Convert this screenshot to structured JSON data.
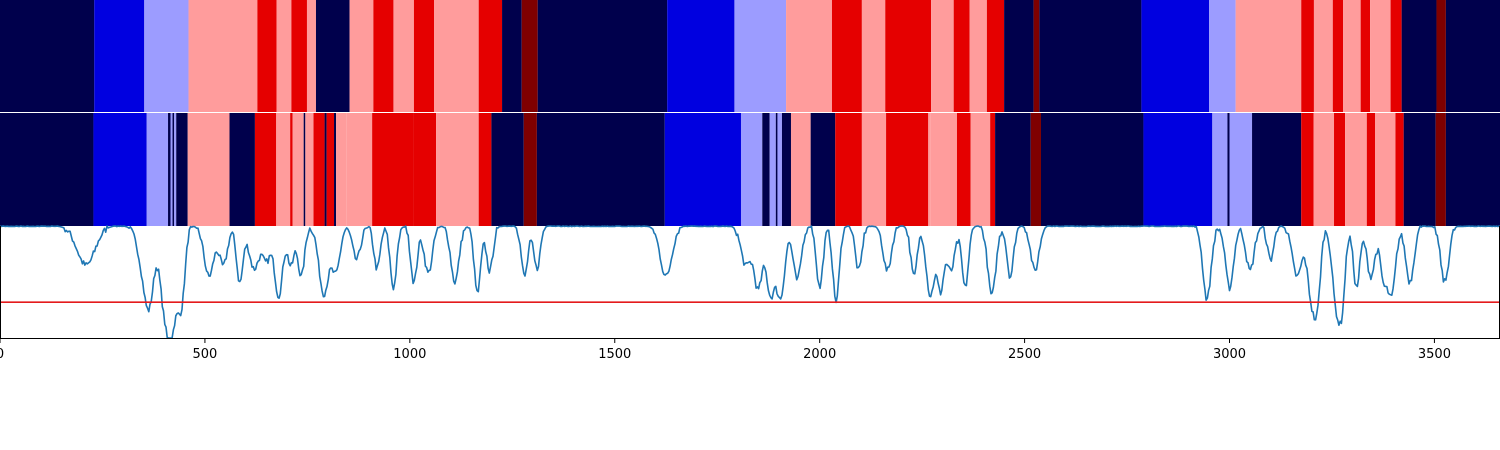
{
  "chart_data": {
    "type": "heatmap",
    "description_of_panels": [
      "segmentation strip 1",
      "segmentation strip 2",
      "line signal with threshold"
    ],
    "x_range": [
      0,
      3660
    ],
    "x_ticks": [
      0,
      500,
      1000,
      1500,
      2000,
      2500,
      3000,
      3500
    ],
    "palette": {
      "navy": "#00004c",
      "blue": "#0000e0",
      "lavender": "#9c9cff",
      "pink": "#ff9c9c",
      "red": "#e50000",
      "dark_red": "#7f0000"
    },
    "strip_top": [
      [
        0,
        230,
        "navy"
      ],
      [
        230,
        352,
        "blue"
      ],
      [
        352,
        460,
        "lavender"
      ],
      [
        460,
        628,
        "pink"
      ],
      [
        628,
        675,
        "red"
      ],
      [
        675,
        711,
        "pink"
      ],
      [
        711,
        749,
        "red"
      ],
      [
        749,
        771,
        "pink"
      ],
      [
        771,
        853,
        "navy"
      ],
      [
        853,
        911,
        "pink"
      ],
      [
        911,
        960,
        "red"
      ],
      [
        960,
        1010,
        "pink"
      ],
      [
        1010,
        1059,
        "red"
      ],
      [
        1059,
        1168,
        "pink"
      ],
      [
        1168,
        1225,
        "red"
      ],
      [
        1225,
        1273,
        "navy"
      ],
      [
        1273,
        1312,
        "dark_red"
      ],
      [
        1312,
        1628,
        "navy"
      ],
      [
        1628,
        1792,
        "blue"
      ],
      [
        1792,
        1918,
        "lavender"
      ],
      [
        1918,
        2030,
        "pink"
      ],
      [
        2030,
        2103,
        "red"
      ],
      [
        2103,
        2160,
        "pink"
      ],
      [
        2160,
        2272,
        "red"
      ],
      [
        2272,
        2327,
        "pink"
      ],
      [
        2327,
        2366,
        "red"
      ],
      [
        2366,
        2408,
        "pink"
      ],
      [
        2408,
        2450,
        "red"
      ],
      [
        2450,
        2522,
        "navy"
      ],
      [
        2522,
        2536,
        "dark_red"
      ],
      [
        2536,
        2785,
        "navy"
      ],
      [
        2785,
        2950,
        "blue"
      ],
      [
        2950,
        3015,
        "lavender"
      ],
      [
        3015,
        3175,
        "pink"
      ],
      [
        3175,
        3206,
        "red"
      ],
      [
        3206,
        3252,
        "pink"
      ],
      [
        3252,
        3277,
        "red"
      ],
      [
        3277,
        3320,
        "pink"
      ],
      [
        3320,
        3343,
        "red"
      ],
      [
        3343,
        3393,
        "pink"
      ],
      [
        3393,
        3420,
        "red"
      ],
      [
        3420,
        3505,
        "navy"
      ],
      [
        3505,
        3528,
        "dark_red"
      ],
      [
        3528,
        3660,
        "navy"
      ]
    ],
    "strip_bottom": [
      [
        0,
        228,
        "navy"
      ],
      [
        228,
        358,
        "blue"
      ],
      [
        358,
        410,
        "lavender"
      ],
      [
        410,
        416,
        "navy"
      ],
      [
        416,
        421,
        "lavender"
      ],
      [
        421,
        425,
        "navy"
      ],
      [
        425,
        430,
        "lavender"
      ],
      [
        430,
        458,
        "navy"
      ],
      [
        458,
        560,
        "pink"
      ],
      [
        560,
        622,
        "navy"
      ],
      [
        622,
        674,
        "red"
      ],
      [
        674,
        708,
        "pink"
      ],
      [
        708,
        714,
        "red"
      ],
      [
        714,
        741,
        "pink"
      ],
      [
        741,
        745,
        "navy"
      ],
      [
        745,
        765,
        "pink"
      ],
      [
        765,
        792,
        "red"
      ],
      [
        792,
        797,
        "navy"
      ],
      [
        797,
        815,
        "red"
      ],
      [
        815,
        820,
        "navy"
      ],
      [
        820,
        846,
        "pink"
      ],
      [
        846,
        908,
        "pink"
      ],
      [
        908,
        1010,
        "red"
      ],
      [
        1010,
        1064,
        "red"
      ],
      [
        1064,
        1168,
        "pink"
      ],
      [
        1168,
        1199,
        "red"
      ],
      [
        1199,
        1278,
        "navy"
      ],
      [
        1278,
        1310,
        "dark_red"
      ],
      [
        1310,
        1622,
        "navy"
      ],
      [
        1622,
        1808,
        "blue"
      ],
      [
        1808,
        1860,
        "lavender"
      ],
      [
        1860,
        1878,
        "navy"
      ],
      [
        1878,
        1893,
        "lavender"
      ],
      [
        1893,
        1897,
        "navy"
      ],
      [
        1897,
        1908,
        "lavender"
      ],
      [
        1908,
        1930,
        "navy"
      ],
      [
        1930,
        1978,
        "pink"
      ],
      [
        1978,
        2038,
        "navy"
      ],
      [
        2038,
        2103,
        "red"
      ],
      [
        2103,
        2162,
        "pink"
      ],
      [
        2162,
        2265,
        "red"
      ],
      [
        2265,
        2270,
        "pink"
      ],
      [
        2270,
        2335,
        "pink"
      ],
      [
        2335,
        2368,
        "red"
      ],
      [
        2368,
        2416,
        "pink"
      ],
      [
        2416,
        2428,
        "red"
      ],
      [
        2428,
        2515,
        "navy"
      ],
      [
        2515,
        2540,
        "dark_red"
      ],
      [
        2540,
        2790,
        "navy"
      ],
      [
        2790,
        2958,
        "blue"
      ],
      [
        2958,
        2995,
        "lavender"
      ],
      [
        2995,
        3000,
        "navy"
      ],
      [
        3000,
        3055,
        "lavender"
      ],
      [
        3055,
        3175,
        "navy"
      ],
      [
        3175,
        3205,
        "red"
      ],
      [
        3205,
        3255,
        "pink"
      ],
      [
        3255,
        3282,
        "red"
      ],
      [
        3282,
        3335,
        "pink"
      ],
      [
        3335,
        3355,
        "red"
      ],
      [
        3355,
        3405,
        "pink"
      ],
      [
        3405,
        3425,
        "red"
      ],
      [
        3425,
        3503,
        "navy"
      ],
      [
        3503,
        3528,
        "dark_red"
      ],
      [
        3528,
        3660,
        "navy"
      ]
    ],
    "line_panel": {
      "y_range": [
        -1.0,
        0.0
      ],
      "threshold": -0.68,
      "threshold_color": "#e41a1c",
      "line_color": "#1f77b4",
      "dips": [
        [
          210,
          0.35,
          22
        ],
        [
          350,
          0.3,
          15
        ],
        [
          365,
          0.55,
          12
        ],
        [
          400,
          0.68,
          10
        ],
        [
          415,
          0.66,
          8
        ],
        [
          430,
          0.6,
          10
        ],
        [
          445,
          0.5,
          8
        ],
        [
          510,
          0.45,
          12
        ],
        [
          545,
          0.35,
          10
        ],
        [
          585,
          0.5,
          8
        ],
        [
          620,
          0.38,
          12
        ],
        [
          650,
          0.3,
          10
        ],
        [
          680,
          0.62,
          10
        ],
        [
          710,
          0.35,
          8
        ],
        [
          735,
          0.45,
          8
        ],
        [
          790,
          0.6,
          12
        ],
        [
          820,
          0.4,
          10
        ],
        [
          870,
          0.3,
          10
        ],
        [
          920,
          0.38,
          8
        ],
        [
          960,
          0.55,
          8
        ],
        [
          1010,
          0.5,
          8
        ],
        [
          1045,
          0.42,
          10
        ],
        [
          1110,
          0.5,
          10
        ],
        [
          1165,
          0.6,
          8
        ],
        [
          1195,
          0.4,
          8
        ],
        [
          1280,
          0.45,
          8
        ],
        [
          1310,
          0.38,
          8
        ],
        [
          1625,
          0.45,
          14
        ],
        [
          1820,
          0.35,
          12
        ],
        [
          1850,
          0.55,
          10
        ],
        [
          1880,
          0.6,
          10
        ],
        [
          1905,
          0.62,
          10
        ],
        [
          1945,
          0.48,
          10
        ],
        [
          2000,
          0.55,
          8
        ],
        [
          2040,
          0.67,
          8
        ],
        [
          2095,
          0.4,
          8
        ],
        [
          2165,
          0.4,
          10
        ],
        [
          2230,
          0.45,
          8
        ],
        [
          2270,
          0.62,
          10
        ],
        [
          2295,
          0.55,
          8
        ],
        [
          2320,
          0.4,
          10
        ],
        [
          2355,
          0.55,
          8
        ],
        [
          2420,
          0.62,
          10
        ],
        [
          2465,
          0.45,
          8
        ],
        [
          2525,
          0.4,
          10
        ],
        [
          2945,
          0.65,
          10
        ],
        [
          3000,
          0.55,
          10
        ],
        [
          3050,
          0.4,
          10
        ],
        [
          3100,
          0.3,
          8
        ],
        [
          3165,
          0.45,
          12
        ],
        [
          3200,
          0.62,
          10
        ],
        [
          3215,
          0.55,
          8
        ],
        [
          3260,
          0.66,
          10
        ],
        [
          3275,
          0.58,
          8
        ],
        [
          3310,
          0.55,
          8
        ],
        [
          3345,
          0.45,
          10
        ],
        [
          3375,
          0.42,
          8
        ],
        [
          3395,
          0.62,
          10
        ],
        [
          3440,
          0.5,
          10
        ],
        [
          3525,
          0.5,
          10
        ]
      ]
    }
  }
}
